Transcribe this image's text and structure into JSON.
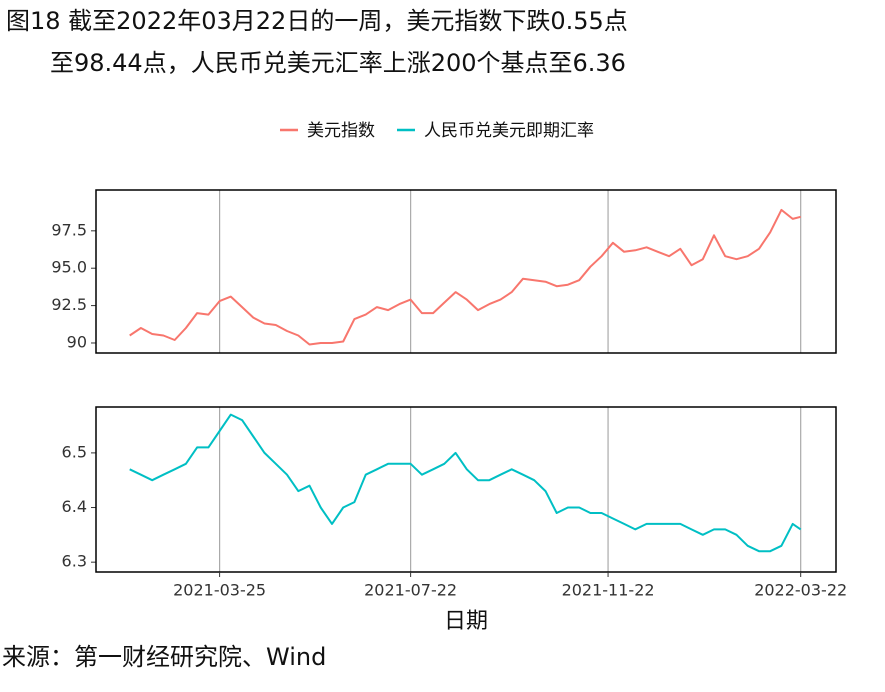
{
  "title": [
    "图18  截至2022年03月22日的一周，美元指数下跌0.55点",
    "至98.44点，人民币兑美元汇率上涨200个基点至6.36"
  ],
  "source": "来源：第一财经研究院、Wind",
  "chart_data": [
    {
      "type": "line",
      "x": [
        "2021-01-28",
        "2021-02-04",
        "2021-02-11",
        "2021-02-18",
        "2021-02-25",
        "2021-03-04",
        "2021-03-11",
        "2021-03-18",
        "2021-03-25",
        "2021-04-01",
        "2021-04-08",
        "2021-04-15",
        "2021-04-22",
        "2021-04-29",
        "2021-05-06",
        "2021-05-13",
        "2021-05-20",
        "2021-05-27",
        "2021-06-03",
        "2021-06-10",
        "2021-06-17",
        "2021-06-24",
        "2021-07-01",
        "2021-07-08",
        "2021-07-15",
        "2021-07-22",
        "2021-07-29",
        "2021-08-05",
        "2021-08-12",
        "2021-08-19",
        "2021-08-26",
        "2021-09-02",
        "2021-09-09",
        "2021-09-16",
        "2021-09-23",
        "2021-09-30",
        "2021-10-07",
        "2021-10-14",
        "2021-10-21",
        "2021-10-28",
        "2021-11-04",
        "2021-11-11",
        "2021-11-18",
        "2021-11-25",
        "2021-12-02",
        "2021-12-09",
        "2021-12-16",
        "2021-12-23",
        "2021-12-30",
        "2022-01-06",
        "2022-01-13",
        "2022-01-20",
        "2022-01-27",
        "2022-02-03",
        "2022-02-10",
        "2022-02-17",
        "2022-02-24",
        "2022-03-03",
        "2022-03-10",
        "2022-03-17",
        "2022-03-22"
      ],
      "series": [
        {
          "name": "美元指数",
          "color": "#F8766D",
          "values": [
            90.5,
            91.0,
            90.6,
            90.5,
            90.2,
            91.0,
            92.0,
            91.9,
            92.8,
            93.1,
            92.4,
            91.7,
            91.3,
            91.2,
            90.8,
            90.5,
            89.9,
            90.0,
            90.0,
            90.1,
            91.6,
            91.9,
            92.4,
            92.2,
            92.6,
            92.9,
            92.0,
            92.0,
            92.7,
            93.4,
            92.9,
            92.2,
            92.6,
            92.9,
            93.4,
            94.3,
            94.2,
            94.1,
            93.8,
            93.9,
            94.2,
            95.1,
            95.8,
            96.7,
            96.1,
            96.2,
            96.4,
            96.1,
            95.8,
            96.3,
            95.2,
            95.6,
            97.2,
            95.8,
            95.6,
            95.8,
            96.3,
            97.4,
            98.9,
            98.3,
            98.44
          ]
        }
      ],
      "xlim": [
        "2021-01-07",
        "2022-04-13"
      ],
      "xticks": [
        "2021-03-25",
        "2021-07-22",
        "2021-11-22",
        "2022-03-22"
      ],
      "ylim": [
        89.33,
        100.23
      ],
      "yticks": [
        90,
        92.5,
        {
          "value": 95,
          "label": "95.0"
        },
        97.5
      ],
      "grid": true
    },
    {
      "type": "line",
      "x": [
        "2021-01-28",
        "2021-02-04",
        "2021-02-11",
        "2021-02-18",
        "2021-02-25",
        "2021-03-04",
        "2021-03-11",
        "2021-03-18",
        "2021-03-25",
        "2021-04-01",
        "2021-04-08",
        "2021-04-15",
        "2021-04-22",
        "2021-04-29",
        "2021-05-06",
        "2021-05-13",
        "2021-05-20",
        "2021-05-27",
        "2021-06-03",
        "2021-06-10",
        "2021-06-17",
        "2021-06-24",
        "2021-07-01",
        "2021-07-08",
        "2021-07-15",
        "2021-07-22",
        "2021-07-29",
        "2021-08-05",
        "2021-08-12",
        "2021-08-19",
        "2021-08-26",
        "2021-09-02",
        "2021-09-09",
        "2021-09-16",
        "2021-09-23",
        "2021-09-30",
        "2021-10-07",
        "2021-10-14",
        "2021-10-21",
        "2021-10-28",
        "2021-11-04",
        "2021-11-11",
        "2021-11-18",
        "2021-11-25",
        "2021-12-02",
        "2021-12-09",
        "2021-12-16",
        "2021-12-23",
        "2021-12-30",
        "2022-01-06",
        "2022-01-13",
        "2022-01-20",
        "2022-01-27",
        "2022-02-03",
        "2022-02-10",
        "2022-02-17",
        "2022-02-24",
        "2022-03-03",
        "2022-03-10",
        "2022-03-17",
        "2022-03-22"
      ],
      "series": [
        {
          "name": "人民币兑美元即期汇率",
          "color": "#00BFC4",
          "values": [
            6.47,
            6.46,
            6.45,
            6.46,
            6.47,
            6.48,
            6.51,
            6.51,
            6.54,
            6.57,
            6.56,
            6.53,
            6.5,
            6.48,
            6.46,
            6.43,
            6.44,
            6.4,
            6.37,
            6.4,
            6.41,
            6.46,
            6.47,
            6.48,
            6.48,
            6.48,
            6.46,
            6.47,
            6.48,
            6.5,
            6.47,
            6.45,
            6.45,
            6.46,
            6.47,
            6.46,
            6.45,
            6.43,
            6.39,
            6.4,
            6.4,
            6.39,
            6.39,
            6.38,
            6.37,
            6.36,
            6.37,
            6.37,
            6.37,
            6.37,
            6.36,
            6.35,
            6.36,
            6.36,
            6.35,
            6.33,
            6.32,
            6.32,
            6.33,
            6.37,
            6.36
          ]
        }
      ],
      "xlim": [
        "2021-01-07",
        "2022-04-13"
      ],
      "xticks": [
        "2021-03-25",
        "2021-07-22",
        "2021-11-22",
        "2022-03-22"
      ],
      "xlabel": "日期",
      "ylim": [
        6.282,
        6.584
      ],
      "yticks": [
        6.3,
        6.4,
        6.5
      ],
      "grid": true
    }
  ]
}
